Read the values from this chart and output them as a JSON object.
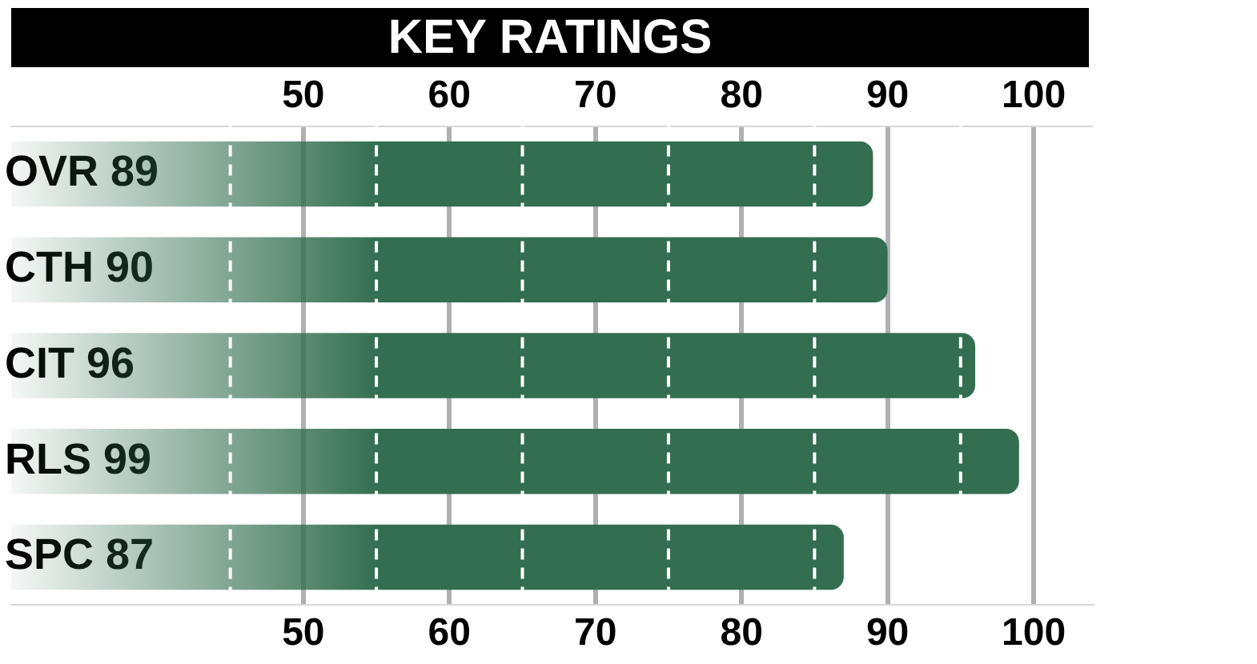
{
  "chart_data": {
    "type": "bar",
    "orientation": "horizontal",
    "title": "KEY RATINGS",
    "categories": [
      "OVR 89",
      "CTH 90",
      "CIT 96",
      "RLS 99",
      "SPC 87"
    ],
    "values": [
      89,
      90,
      96,
      99,
      87
    ],
    "color": "#336e50",
    "xlim": [
      30,
      104
    ],
    "xticks": [
      50,
      60,
      70,
      80,
      90,
      100
    ],
    "x2lim": [
      30,
      104
    ],
    "x2ticks": [
      50,
      60,
      70,
      80,
      90,
      100
    ],
    "ref_lines": [
      {
        "axis": "x",
        "value": 45,
        "color": "#ffffff",
        "line_style": "dashed"
      },
      {
        "axis": "x",
        "value": 55,
        "color": "#ffffff",
        "line_style": "dashed"
      },
      {
        "axis": "x",
        "value": 65,
        "color": "#ffffff",
        "line_style": "dashed"
      },
      {
        "axis": "x",
        "value": 75,
        "color": "#ffffff",
        "line_style": "dashed"
      },
      {
        "axis": "x",
        "value": 85,
        "color": "#ffffff",
        "line_style": "dashed"
      },
      {
        "axis": "x",
        "value": 95,
        "color": "#ffffff",
        "line_style": "dashed"
      }
    ],
    "grid": "x",
    "legend": false
  }
}
